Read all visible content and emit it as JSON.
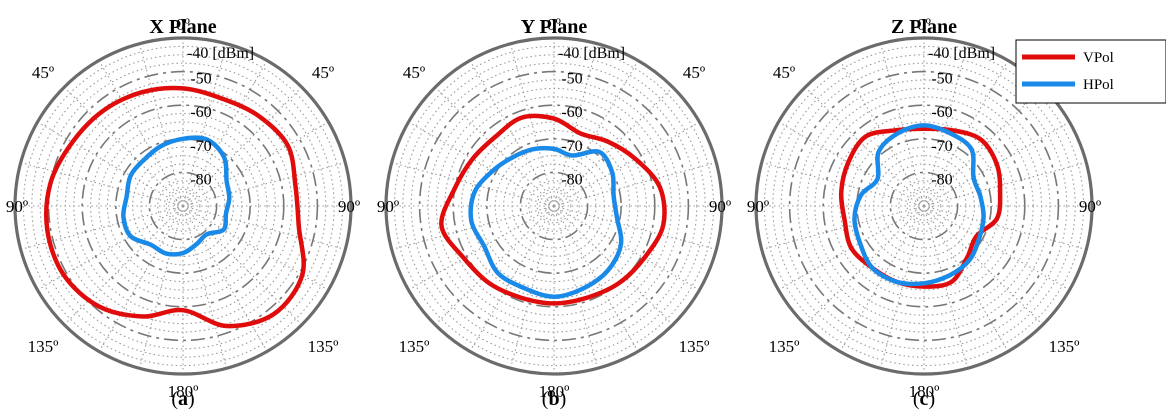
{
  "figure": {
    "legend": {
      "items": [
        {
          "label": "VPol",
          "color": "#e00b0b"
        },
        {
          "label": "HPol",
          "color": "#1a8ae8"
        }
      ],
      "placement": "top-right"
    }
  },
  "chart_data": [
    {
      "type": "polar",
      "title": "X Plane",
      "caption": "(a)",
      "angle_ticks": [
        "0º",
        "45º",
        "45º",
        "90º",
        "90º",
        "135º",
        "135º",
        "180º"
      ],
      "radial_tick_labels": [
        "-40 [dBm]",
        "-50",
        "-60",
        "-70",
        "-80"
      ],
      "rlim": [
        -90,
        -40
      ],
      "grid": true,
      "series": [
        {
          "name": "VPol",
          "color": "#e00b0b",
          "theta_deg": [
            0,
            20,
            40,
            60,
            80,
            100,
            120,
            140,
            160,
            180,
            200,
            220,
            240,
            260,
            280,
            300,
            320,
            340
          ],
          "values": [
            -55,
            -56,
            -55,
            -54,
            -56,
            -55,
            -49,
            -48,
            -52,
            -59,
            -55,
            -51,
            -49,
            -49,
            -50,
            -52,
            -53,
            -54
          ]
        },
        {
          "name": "HPol",
          "color": "#1a8ae8",
          "theta_deg": [
            0,
            20,
            40,
            60,
            80,
            100,
            120,
            140,
            160,
            180,
            200,
            220,
            240,
            260,
            280,
            300,
            320,
            340
          ],
          "values": [
            -70,
            -69,
            -71,
            -75,
            -76,
            -77,
            -76,
            -79,
            -78,
            -76,
            -75,
            -75,
            -72,
            -72,
            -73,
            -72,
            -72,
            -71
          ]
        }
      ]
    },
    {
      "type": "polar",
      "title": "Y Plane",
      "caption": "(b)",
      "angle_ticks": [
        "0º",
        "45º",
        "45º",
        "90º",
        "90º",
        "135º",
        "135º",
        "180º"
      ],
      "radial_tick_labels": [
        "-40 [dBm]",
        "-50",
        "-60",
        "-70",
        "-80"
      ],
      "rlim": [
        -90,
        -40
      ],
      "grid": true,
      "series": [
        {
          "name": "VPol",
          "color": "#e00b0b",
          "theta_deg": [
            0,
            20,
            40,
            60,
            80,
            100,
            120,
            140,
            160,
            180,
            200,
            220,
            240,
            260,
            280,
            300,
            320,
            340
          ],
          "values": [
            -64,
            -67,
            -65,
            -62,
            -58,
            -57,
            -59,
            -60,
            -61,
            -61,
            -61,
            -60,
            -59,
            -56,
            -60,
            -62,
            -63,
            -62
          ]
        },
        {
          "name": "HPol",
          "color": "#1a8ae8",
          "theta_deg": [
            0,
            20,
            40,
            60,
            80,
            100,
            120,
            140,
            160,
            180,
            200,
            220,
            240,
            260,
            280,
            300,
            320,
            340
          ],
          "values": [
            -73,
            -74,
            -69,
            -70,
            -72,
            -71,
            -67,
            -65,
            -64,
            -63,
            -64,
            -64,
            -66,
            -65,
            -66,
            -69,
            -71,
            -72
          ]
        }
      ]
    },
    {
      "type": "polar",
      "title": "Z Plane",
      "caption": "(c)",
      "angle_ticks": [
        "0º",
        "45º",
        "45º",
        "90º",
        "90º",
        "135º",
        "135º",
        "180º"
      ],
      "radial_tick_labels": [
        "-40 [dBm]",
        "-50",
        "-60",
        "-70",
        "-80"
      ],
      "rlim": [
        -90,
        -40
      ],
      "grid": true,
      "series": [
        {
          "name": "VPol",
          "color": "#e00b0b",
          "theta_deg": [
            0,
            20,
            40,
            60,
            80,
            100,
            120,
            140,
            160,
            180,
            200,
            220,
            240,
            260,
            280,
            300,
            320,
            340
          ],
          "values": [
            -67,
            -66,
            -64,
            -65,
            -67,
            -68,
            -72,
            -70,
            -66,
            -66,
            -66,
            -66,
            -65,
            -66,
            -65,
            -64,
            -63,
            -66
          ]
        },
        {
          "name": "HPol",
          "color": "#1a8ae8",
          "theta_deg": [
            0,
            20,
            40,
            60,
            80,
            100,
            120,
            140,
            160,
            180,
            200,
            220,
            240,
            260,
            280,
            300,
            320,
            340
          ],
          "values": [
            -66,
            -67,
            -68,
            -73,
            -73,
            -72,
            -71,
            -69,
            -68,
            -67,
            -66,
            -66,
            -68,
            -69,
            -71,
            -74,
            -69,
            -67
          ]
        }
      ]
    }
  ]
}
